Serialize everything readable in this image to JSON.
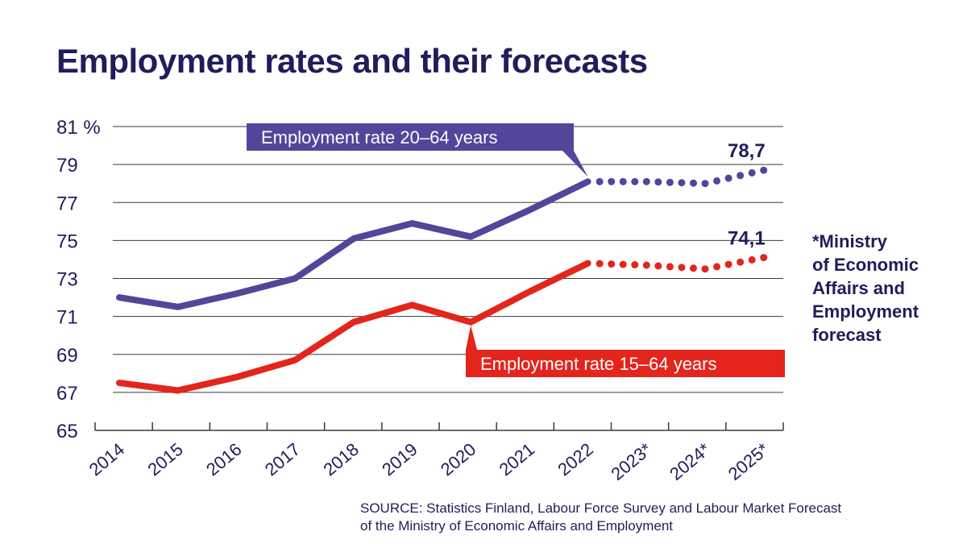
{
  "title": "Employment rates and their forecasts",
  "note": "*Ministry\n of Economic\n Affairs and\n Employment\n forecast",
  "source": {
    "line1": "SOURCE: Statistics Finland, Labour Force Survey and Labour Market Forecast",
    "line2": "of the Ministry of Economic Affairs and Employment"
  },
  "colors": {
    "series_20_64": "#53459a",
    "series_15_64": "#e3251c",
    "text": "#1f1d5a",
    "grid": "#3a3a3a"
  },
  "chart_data": {
    "type": "line",
    "title": "Employment rates and their forecasts",
    "x": [
      "2014",
      "2015",
      "2016",
      "2017",
      "2018",
      "2019",
      "2020",
      "2021",
      "2022",
      "2023*",
      "2024*",
      "2025*"
    ],
    "yticks": [
      "65",
      "67",
      "69",
      "71",
      "73",
      "75",
      "77",
      "79",
      "81 %"
    ],
    "ylim": [
      65,
      81
    ],
    "grid": true,
    "forecast_from": "2022",
    "series": [
      {
        "name": "Employment rate 20–64 years",
        "color": "#53459a",
        "values": [
          72.0,
          71.5,
          72.2,
          73.0,
          75.1,
          75.9,
          75.2,
          76.6,
          78.1,
          78.1,
          78.0,
          78.7
        ],
        "end_label": "78,7"
      },
      {
        "name": "Employment rate 15–64 years",
        "color": "#e3251c",
        "values": [
          67.5,
          67.1,
          67.8,
          68.7,
          70.7,
          71.6,
          70.7,
          72.3,
          73.8,
          73.7,
          73.5,
          74.1
        ],
        "end_label": "74,1"
      }
    ]
  }
}
